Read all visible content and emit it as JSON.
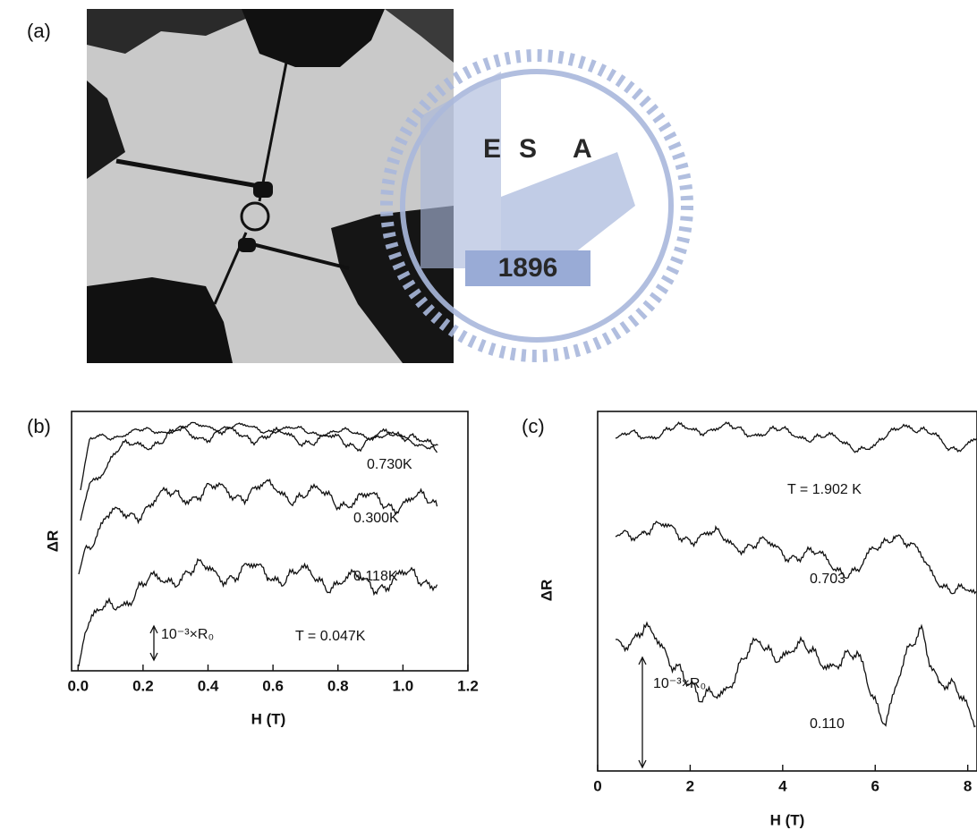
{
  "panel_a": {
    "label": "(a)"
  },
  "watermark": {
    "letters": [
      "E",
      "S",
      "A"
    ],
    "year": "1896"
  },
  "chart_data": [
    {
      "type": "line",
      "panel_label": "(b)",
      "y_label": "ΔR",
      "x_label": "H (T)",
      "xlim": [
        -0.02,
        1.2
      ],
      "xticks": [
        {
          "value": 0,
          "label": "0.0"
        },
        {
          "value": 0.2,
          "label": "0.2"
        },
        {
          "value": 0.4,
          "label": "0.4"
        },
        {
          "value": 0.6,
          "label": "0.6"
        },
        {
          "value": 0.8,
          "label": "0.8"
        },
        {
          "value": 1.0,
          "label": "1.0"
        },
        {
          "value": 1.2,
          "label": "1.2"
        }
      ],
      "annotations": [
        "0.730K",
        "0.300K",
        "0.118K",
        "T = 0.047K"
      ],
      "scale_bar": "10⁻³×R₀"
    },
    {
      "type": "line",
      "panel_label": "(c)",
      "y_label": "ΔR",
      "x_label": "H (T)",
      "xlim": [
        0,
        8.2
      ],
      "xticks": [
        0,
        2,
        4,
        6,
        8
      ],
      "annotations": [
        "T = 1.902 K",
        "0.703",
        "0.110"
      ],
      "scale_bar": "10⁻³×R₀"
    }
  ]
}
